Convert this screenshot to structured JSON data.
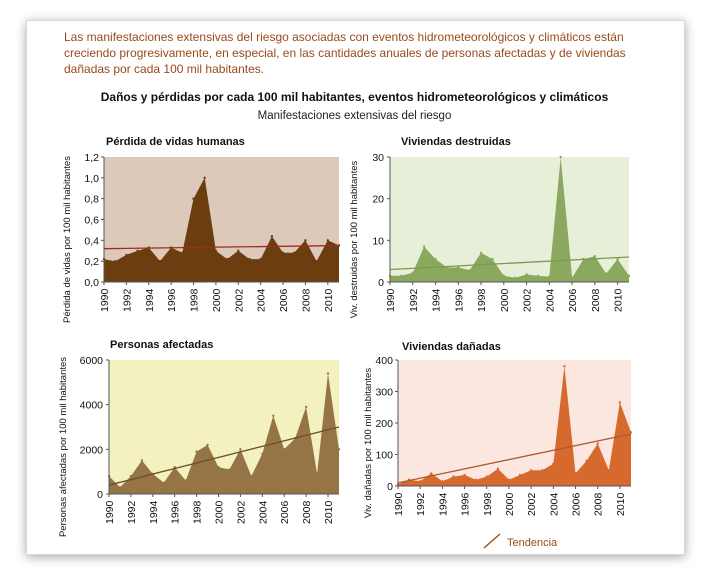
{
  "intro_text": "Las manifestaciones extensivas del riesgo asociadas con eventos hidrometeorológicos y climáticos están creciendo progresivamente, en especial, en las cantidades anuales de personas afectadas y de viviendas dañadas por cada 100 mil habitantes.",
  "figure_title": "Daños y pérdidas por cada 100 mil habitantes, eventos hidrometeorológicos y climáticos",
  "figure_subtitle": "Manifestaciones extensivas del riesgo",
  "legend_label": "Tendencia",
  "chart_data": [
    {
      "type": "area",
      "title": "Pérdida de vidas humanas",
      "ylabel": "Pérdida de vidas por 100 mil habitantes",
      "xlabel": "",
      "x": [
        1990,
        1991,
        1992,
        1993,
        1994,
        1995,
        1996,
        1997,
        1998,
        1999,
        2000,
        2001,
        2002,
        2003,
        2004,
        2005,
        2006,
        2007,
        2008,
        2009,
        2010,
        2011
      ],
      "values": [
        0.22,
        0.2,
        0.26,
        0.3,
        0.33,
        0.2,
        0.33,
        0.28,
        0.8,
        1.0,
        0.3,
        0.22,
        0.3,
        0.22,
        0.22,
        0.44,
        0.28,
        0.28,
        0.4,
        0.2,
        0.4,
        0.35
      ],
      "trend": [
        0.32,
        0.35
      ],
      "ylim": [
        0,
        1.2
      ],
      "yticks": [
        "0,0",
        "0,2",
        "0,4",
        "0,6",
        "0,8",
        "1,0",
        "1,2"
      ],
      "ytick_values": [
        0,
        0.2,
        0.4,
        0.6,
        0.8,
        1.0,
        1.2
      ],
      "xticks": [
        "1990",
        "1992",
        "1994",
        "1996",
        "1998",
        "2000",
        "2002",
        "2004",
        "2006",
        "2008",
        "2010"
      ],
      "colors": {
        "area": "#6b3d0f",
        "background": "#dcc9b9",
        "trend": "#a22a22"
      }
    },
    {
      "type": "area",
      "title": "Viviendas destruidas",
      "ylabel": "Viv. destruidas por 100 mil habitantes",
      "xlabel": "",
      "x": [
        1990,
        1991,
        1992,
        1993,
        1994,
        1995,
        1996,
        1997,
        1998,
        1999,
        2000,
        2001,
        2002,
        2003,
        2004,
        2005,
        2006,
        2007,
        2008,
        2009,
        2010,
        2011
      ],
      "values": [
        1.5,
        1.5,
        2.2,
        8.5,
        5.5,
        3.5,
        3.5,
        2.8,
        7,
        5.5,
        1.5,
        1,
        1.8,
        1.5,
        1.3,
        30,
        1,
        5.5,
        6.2,
        2,
        5.5,
        1.5
      ],
      "trend": [
        3.0,
        6.0
      ],
      "ylim": [
        0,
        30
      ],
      "yticks": [
        "0",
        "10",
        "20",
        "30"
      ],
      "ytick_values": [
        0,
        10,
        20,
        30
      ],
      "xticks": [
        "1990",
        "1992",
        "1994",
        "1996",
        "1998",
        "2000",
        "2002",
        "2004",
        "2006",
        "2008",
        "2010"
      ],
      "colors": {
        "area": "#8aa85e",
        "background": "#e7efd9",
        "trend": "#7c9a4f"
      }
    },
    {
      "type": "area",
      "title": "Personas afectadas",
      "ylabel": "Personas afectadas por 100 mil habitantes",
      "xlabel": "",
      "x": [
        1990,
        1991,
        1992,
        1993,
        1994,
        1995,
        1996,
        1997,
        1998,
        1999,
        2000,
        2001,
        2002,
        2003,
        2004,
        2005,
        2006,
        2007,
        2008,
        2009,
        2010,
        2011
      ],
      "values": [
        800,
        300,
        800,
        1500,
        900,
        500,
        1200,
        600,
        1900,
        2200,
        1200,
        1100,
        2000,
        800,
        1800,
        3500,
        2000,
        2500,
        3900,
        900,
        5400,
        2000
      ],
      "trend": [
        400,
        3000
      ],
      "ylim": [
        0,
        6000
      ],
      "yticks": [
        "0",
        "2000",
        "4000",
        "6000"
      ],
      "ytick_values": [
        0,
        2000,
        4000,
        6000
      ],
      "xticks": [
        "1990",
        "1992",
        "1994",
        "1996",
        "1998",
        "2000",
        "2002",
        "2004",
        "2006",
        "2008",
        "2010"
      ],
      "colors": {
        "area": "#957545",
        "background": "#f4f1c0",
        "trend": "#6b4f2b"
      }
    },
    {
      "type": "area",
      "title": "Viviendas dañadas",
      "ylabel": "Viv. dañadas por 100 mil habitantes",
      "xlabel": "",
      "x": [
        1990,
        1991,
        1992,
        1993,
        1994,
        1995,
        1996,
        1997,
        1998,
        1999,
        2000,
        2001,
        2002,
        2003,
        2004,
        2005,
        2006,
        2007,
        2008,
        2009,
        2010,
        2011
      ],
      "values": [
        5,
        20,
        15,
        40,
        15,
        30,
        35,
        20,
        30,
        55,
        20,
        35,
        50,
        50,
        70,
        380,
        40,
        80,
        135,
        50,
        265,
        170
      ],
      "trend": [
        10,
        165
      ],
      "ylim": [
        0,
        400
      ],
      "yticks": [
        "0",
        "100",
        "200",
        "300",
        "400"
      ],
      "ytick_values": [
        0,
        100,
        200,
        300,
        400
      ],
      "xticks": [
        "1990",
        "1992",
        "1994",
        "1996",
        "1998",
        "2000",
        "2002",
        "2004",
        "2006",
        "2008",
        "2010"
      ],
      "colors": {
        "area": "#d66a2e",
        "background": "#fbe7df",
        "trend": "#b0592c"
      }
    }
  ]
}
